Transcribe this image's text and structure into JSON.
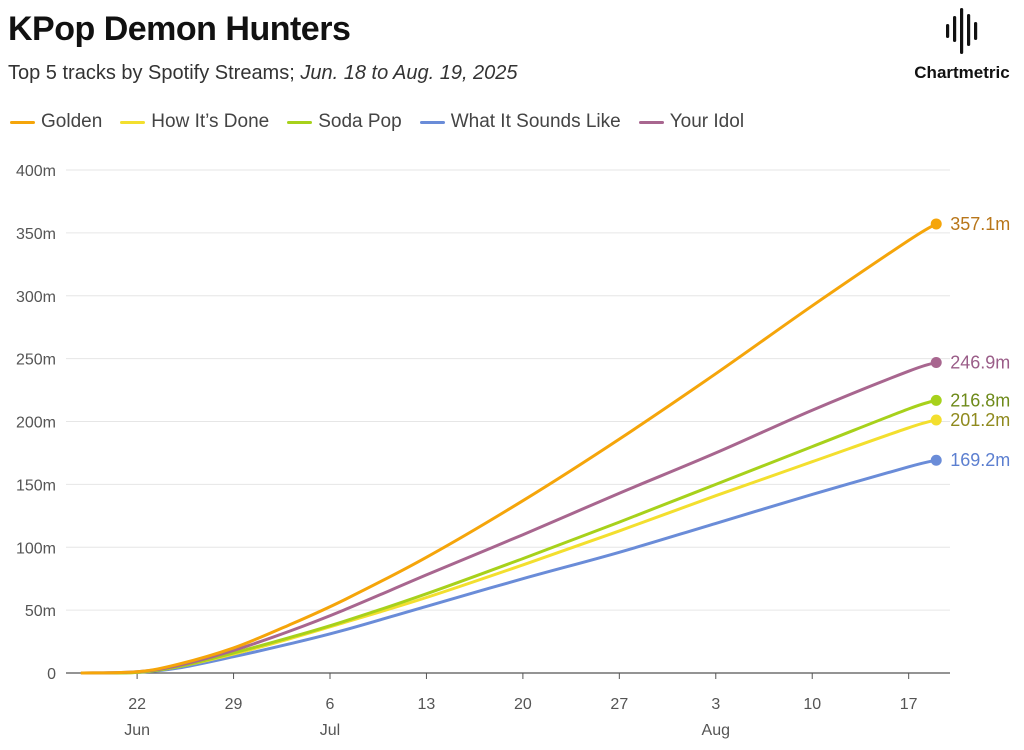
{
  "header": {
    "title": "KPop Demon Hunters",
    "subtitle_prefix": "Top 5 tracks by Spotify Streams; ",
    "subtitle_range": "Jun. 18 to Aug. 19, 2025",
    "brand": "Chartmetric",
    "brand_icon": "sound-wave-icon"
  },
  "colors": {
    "Golden": "#f5a50a",
    "How It’s Done": "#f3df2e",
    "Soda Pop": "#a7d11b",
    "What It Sounds Like": "#6a8cd8",
    "Your Idol": "#a8668f"
  },
  "label_colors": {
    "Golden": "#b8761a",
    "How It’s Done": "#8f8a1e",
    "Soda Pop": "#6e8a1a",
    "What It Sounds Like": "#5c7fd0",
    "Your Idol": "#9a5d88"
  },
  "chart_data": {
    "type": "line",
    "x_axis": "date",
    "x": [
      "2025-06-18",
      "2025-06-22",
      "2025-06-25",
      "2025-06-29",
      "2025-07-03",
      "2025-07-07",
      "2025-07-13",
      "2025-07-20",
      "2025-07-27",
      "2025-08-03",
      "2025-08-10",
      "2025-08-17",
      "2025-08-19"
    ],
    "series": [
      {
        "name": "Golden",
        "values": [
          0,
          1,
          7,
          20,
          38,
          58,
          92,
          137,
          186,
          238,
          292,
          344,
          357.1
        ],
        "end_label": "357.1m"
      },
      {
        "name": "How It’s Done",
        "values": [
          0,
          0.5,
          5,
          15,
          27,
          40,
          60,
          86,
          113,
          141,
          168,
          195,
          201.2
        ],
        "end_label": "201.2m"
      },
      {
        "name": "Soda Pop",
        "values": [
          0,
          0.5,
          5,
          16,
          28,
          41,
          63,
          91,
          120,
          150,
          180,
          210,
          216.8
        ],
        "end_label": "216.8m"
      },
      {
        "name": "What It Sounds Like",
        "values": [
          0,
          0.5,
          4,
          13,
          23,
          34,
          53,
          75,
          96,
          119,
          142,
          164,
          169.2
        ],
        "end_label": "169.2m"
      },
      {
        "name": "Your Idol",
        "values": [
          0,
          1,
          6,
          18,
          33,
          50,
          78,
          110,
          143,
          175,
          209,
          240,
          246.9
        ],
        "end_label": "246.9m"
      }
    ],
    "ylim": [
      0,
      400
    ],
    "y_ticks": [
      "0",
      "50m",
      "100m",
      "150m",
      "200m",
      "250m",
      "300m",
      "350m",
      "400m"
    ],
    "y_tick_values": [
      0,
      50,
      100,
      150,
      200,
      250,
      300,
      350,
      400
    ],
    "x_ticks": [
      {
        "date": "2025-06-22",
        "day": "22",
        "month": "Jun"
      },
      {
        "date": "2025-06-29",
        "day": "29",
        "month": ""
      },
      {
        "date": "2025-07-06",
        "day": "6",
        "month": "Jul"
      },
      {
        "date": "2025-07-13",
        "day": "13",
        "month": ""
      },
      {
        "date": "2025-07-20",
        "day": "20",
        "month": ""
      },
      {
        "date": "2025-07-27",
        "day": "27",
        "month": ""
      },
      {
        "date": "2025-08-03",
        "day": "3",
        "month": "Aug"
      },
      {
        "date": "2025-08-10",
        "day": "10",
        "month": ""
      },
      {
        "date": "2025-08-17",
        "day": "17",
        "month": ""
      }
    ],
    "grid": true,
    "legend_position": "top-left"
  }
}
